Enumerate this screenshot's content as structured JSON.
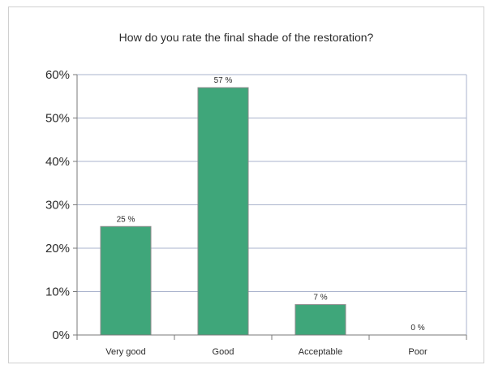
{
  "chart_data": {
    "type": "bar",
    "title": "How do you rate the final shade of the restoration?",
    "xlabel": "",
    "ylabel": "",
    "categories": [
      "Very good",
      "Good",
      "Acceptable",
      "Poor"
    ],
    "values": [
      25,
      57,
      7,
      0
    ],
    "data_labels": [
      "25 %",
      "57 %",
      "7 %",
      "0 %"
    ],
    "ylim": [
      0,
      60
    ],
    "yticks": [
      "0%",
      "10%",
      "20%",
      "30%",
      "40%",
      "50%",
      "60%"
    ],
    "grid": true,
    "legend": "none",
    "bar_color": "#3fa67a",
    "bar_edge_color": "#8a8a8a",
    "grid_color": "#a9b3cc"
  }
}
